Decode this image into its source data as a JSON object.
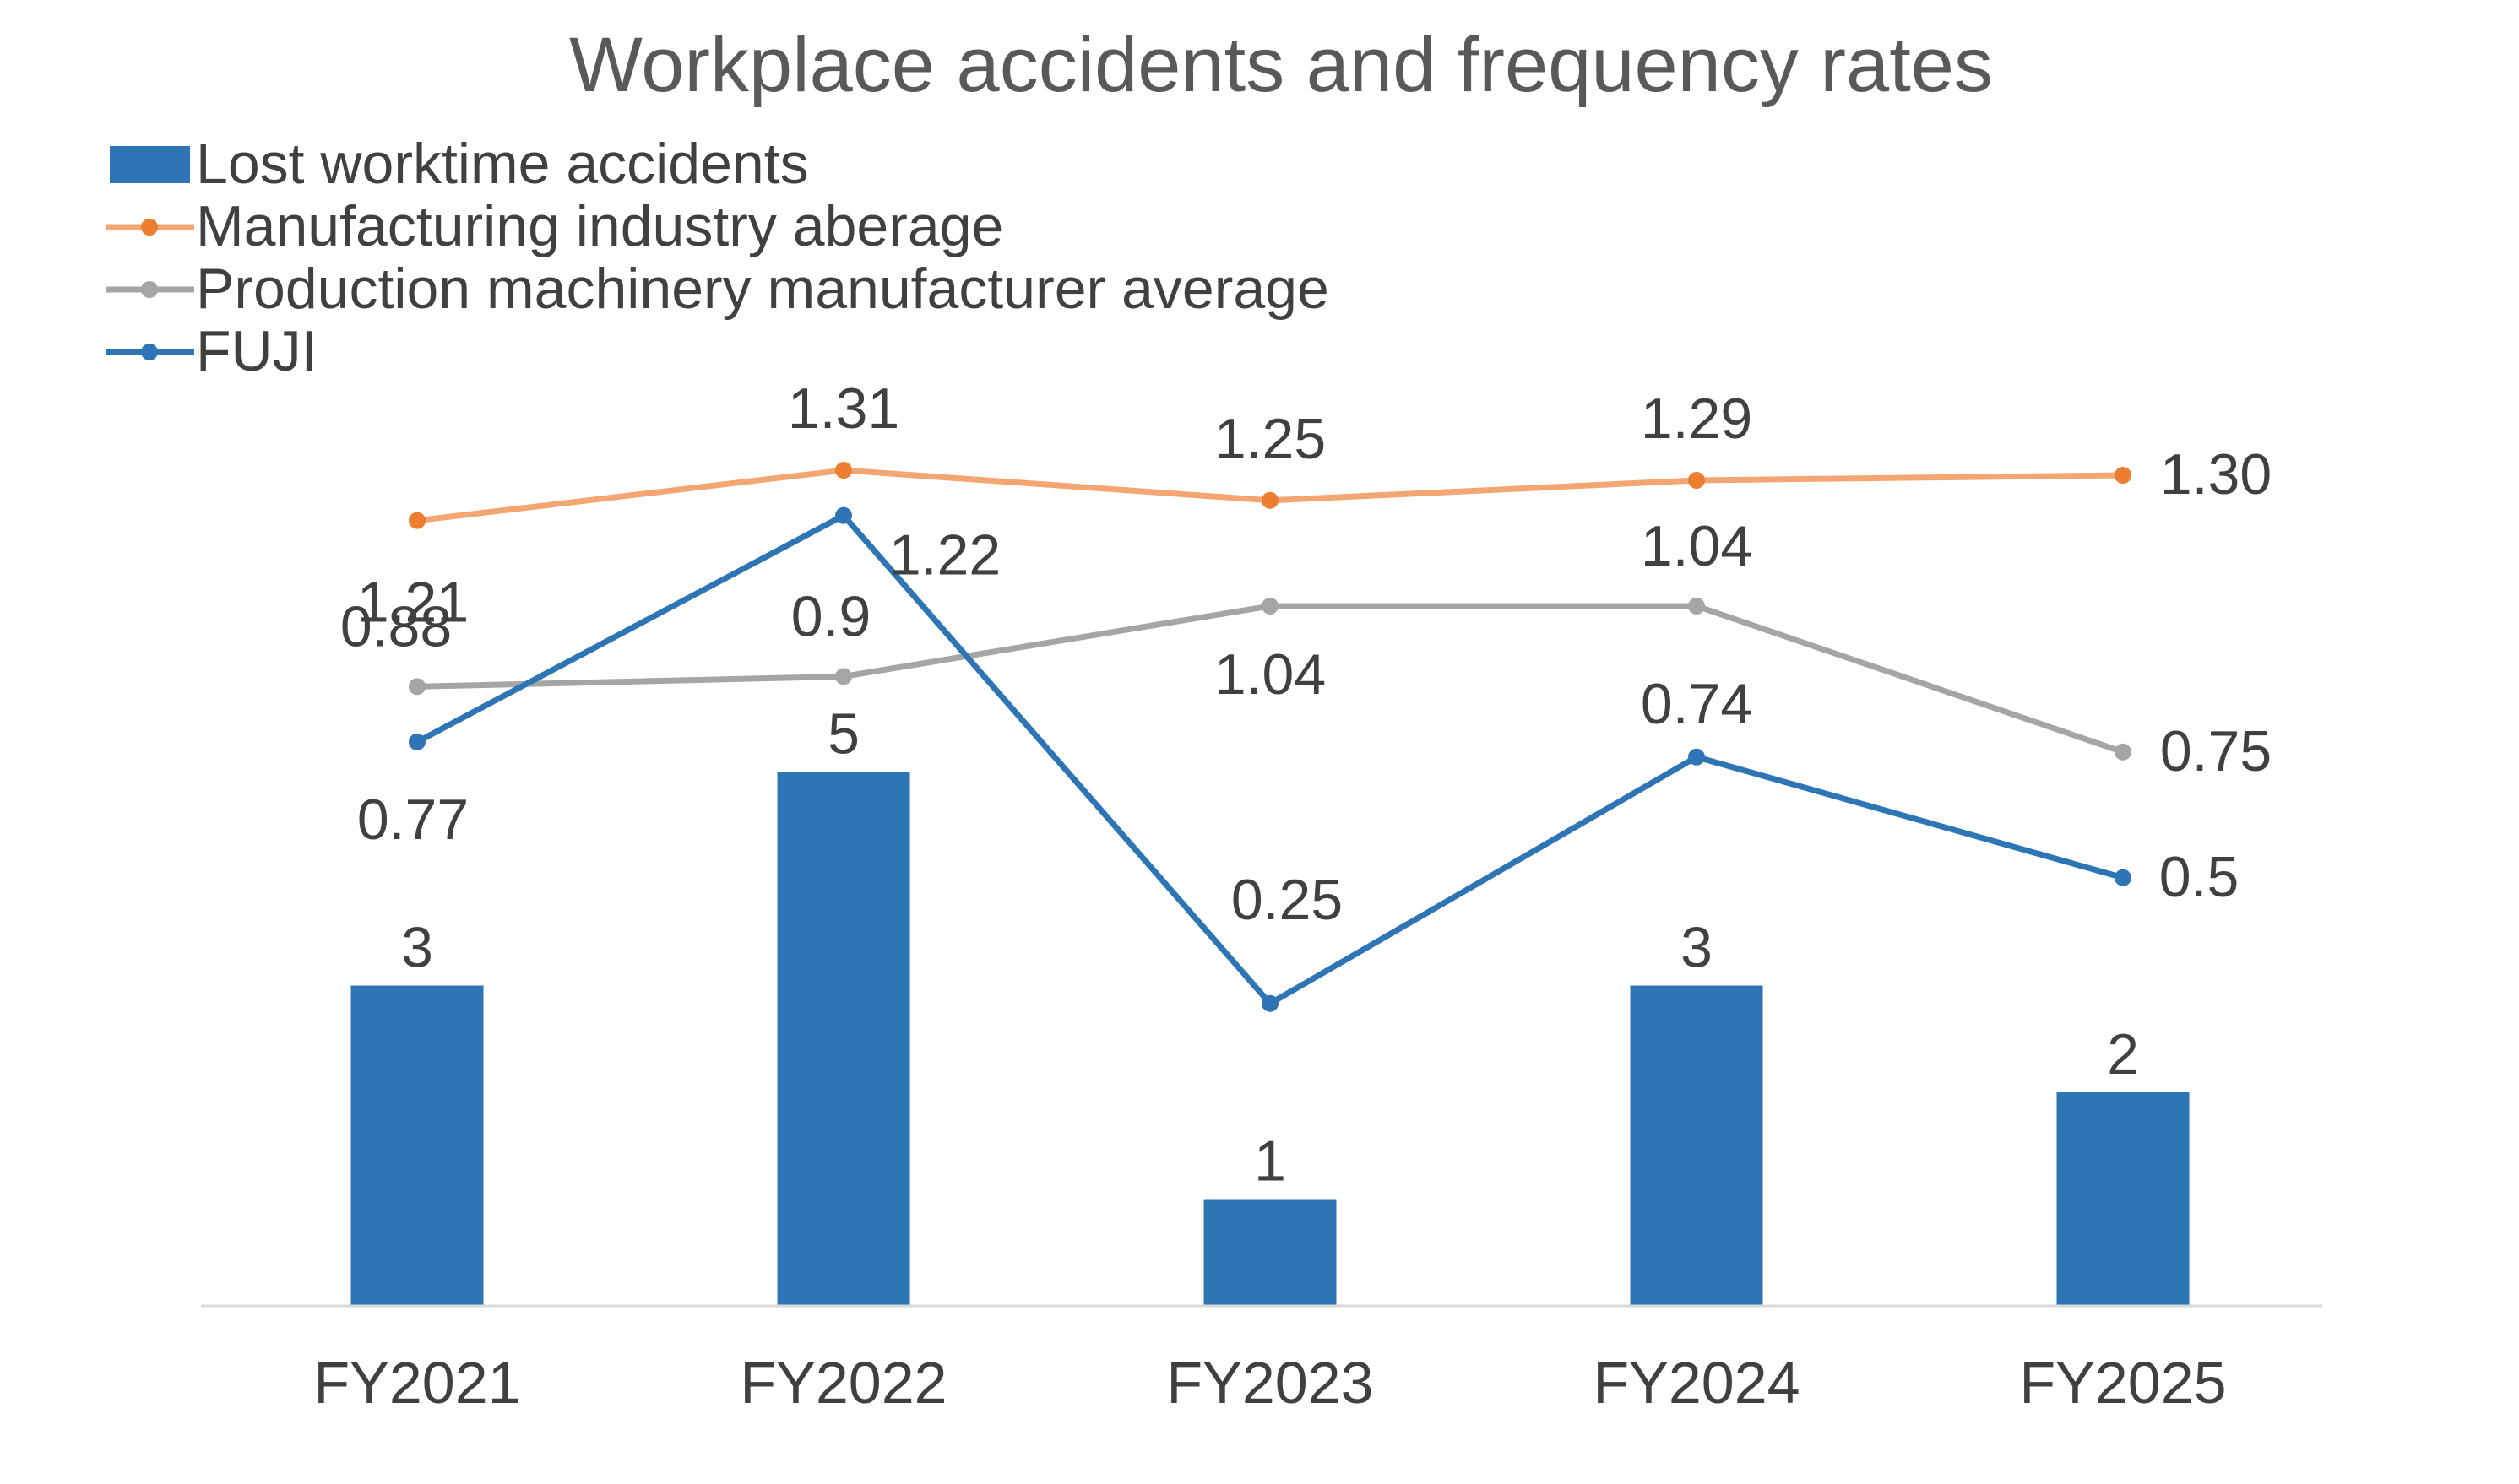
{
  "chart_data": {
    "type": "bar+line",
    "title": "Workplace accidents and frequency rates",
    "categories": [
      "FY2021",
      "FY2022",
      "FY2023",
      "FY2024",
      "FY2025"
    ],
    "bar_series": {
      "name": "Lost worktime accidents",
      "color": "#2E75B6",
      "values": [
        3,
        5,
        1,
        3,
        2
      ],
      "labels": [
        "3",
        "5",
        "1",
        "3",
        "2"
      ]
    },
    "line_series": [
      {
        "name": "Manufacturing industry aberage",
        "color": "#F4A672",
        "marker_color": "#ED7D31",
        "values": [
          1.21,
          1.31,
          1.25,
          1.29,
          1.3
        ],
        "labels": [
          "1.21",
          "1.31",
          "1.25",
          "1.29",
          "1.30"
        ]
      },
      {
        "name": "Production machinery manufacturer average",
        "color": "#A5A5A5",
        "marker_color": "#A5A5A5",
        "values": [
          0.88,
          0.9,
          1.04,
          1.04,
          0.75
        ],
        "labels": [
          "0.88",
          "0.9",
          "1.04",
          "1.04",
          "0.75"
        ]
      },
      {
        "name": "FUJI",
        "color": "#2E75B6",
        "marker_color": "#2E75B6",
        "values": [
          0.77,
          1.22,
          0.25,
          0.74,
          0.5
        ],
        "labels": [
          "0.77",
          "1.22",
          "0.25",
          "0.74",
          "0.5"
        ]
      }
    ],
    "bar_axis_range": [
      0,
      5
    ],
    "line_axis_range": [
      0,
      1.31
    ],
    "axes_visible": false,
    "grid": false,
    "legend_position": "top-left"
  }
}
